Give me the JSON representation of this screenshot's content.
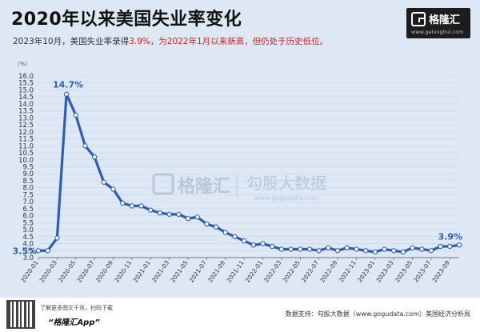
{
  "header": {
    "title": "2020年以来美国失业率变化",
    "subtitle_prefix": "2023年10月，美国失业率录得",
    "subtitle_highlight": "3.9%，为2022年1月以来新高，但仍处于历史低位。"
  },
  "logo": {
    "name": "格隆汇",
    "url": "www.gelonghui.com"
  },
  "watermark": {
    "left": "格隆汇",
    "right": "勾股大数据",
    "right_url": "www.gogudata.com"
  },
  "footer": {
    "qr_note": "了解更多图文干货，扫码下载",
    "app_name": "“格隆汇App”",
    "source": "数据支持：勾股大数据（www.gogudata.com）美国经济分析局"
  },
  "colors": {
    "line": "#2f5db5",
    "marker_fill": "#ffffff",
    "label": "#2f5db5",
    "grid": "#c8d6e8",
    "highlight": "#d42020"
  },
  "chart_data": {
    "type": "line",
    "title": "2020年以来美国失业率变化",
    "ylabel": "(%)",
    "ylim": [
      3.0,
      16.0
    ],
    "yticks": [
      "3.0",
      "3.5",
      "4.0",
      "4.5",
      "5.0",
      "5.5",
      "6.0",
      "6.5",
      "7.0",
      "7.5",
      "8.0",
      "8.5",
      "9.0",
      "9.5",
      "10.0",
      "10.5",
      "11.0",
      "11.5",
      "12.0",
      "12.5",
      "13.0",
      "13.5",
      "14.0",
      "14.5",
      "15.0",
      "15.5",
      "16.0"
    ],
    "xtick_labels": [
      "2020-01",
      "2020-03",
      "2020-05",
      "2020-07",
      "2020-09",
      "2020-11",
      "2021-01",
      "2021-03",
      "2021-05",
      "2021-07",
      "2021-09",
      "2021-11",
      "2022-01",
      "2022-03",
      "2022-05",
      "2022-07",
      "2022-09",
      "2022-11",
      "2023-01",
      "2023-03",
      "2023-05",
      "2023-07",
      "2023-09"
    ],
    "x": [
      "2020-01",
      "2020-02",
      "2020-03",
      "2020-04",
      "2020-05",
      "2020-06",
      "2020-07",
      "2020-08",
      "2020-09",
      "2020-10",
      "2020-11",
      "2020-12",
      "2021-01",
      "2021-02",
      "2021-03",
      "2021-04",
      "2021-05",
      "2021-06",
      "2021-07",
      "2021-08",
      "2021-09",
      "2021-10",
      "2021-11",
      "2021-12",
      "2022-01",
      "2022-02",
      "2022-03",
      "2022-04",
      "2022-05",
      "2022-06",
      "2022-07",
      "2022-08",
      "2022-09",
      "2022-10",
      "2022-11",
      "2022-12",
      "2023-01",
      "2023-02",
      "2023-03",
      "2023-04",
      "2023-05",
      "2023-06",
      "2023-07",
      "2023-08",
      "2023-09",
      "2023-10"
    ],
    "values": [
      3.5,
      3.5,
      4.4,
      14.7,
      13.2,
      11.0,
      10.2,
      8.4,
      7.9,
      6.9,
      6.7,
      6.7,
      6.4,
      6.2,
      6.1,
      6.1,
      5.8,
      5.9,
      5.4,
      5.2,
      4.8,
      4.5,
      4.2,
      3.9,
      4.0,
      3.8,
      3.6,
      3.6,
      3.6,
      3.6,
      3.5,
      3.7,
      3.5,
      3.7,
      3.6,
      3.5,
      3.4,
      3.6,
      3.5,
      3.4,
      3.7,
      3.6,
      3.5,
      3.8,
      3.8,
      3.9
    ],
    "annotations": [
      {
        "index": 0,
        "text": "3.5%"
      },
      {
        "index": 3,
        "text": "14.7%"
      },
      {
        "index": 45,
        "text": "3.9%"
      }
    ]
  }
}
